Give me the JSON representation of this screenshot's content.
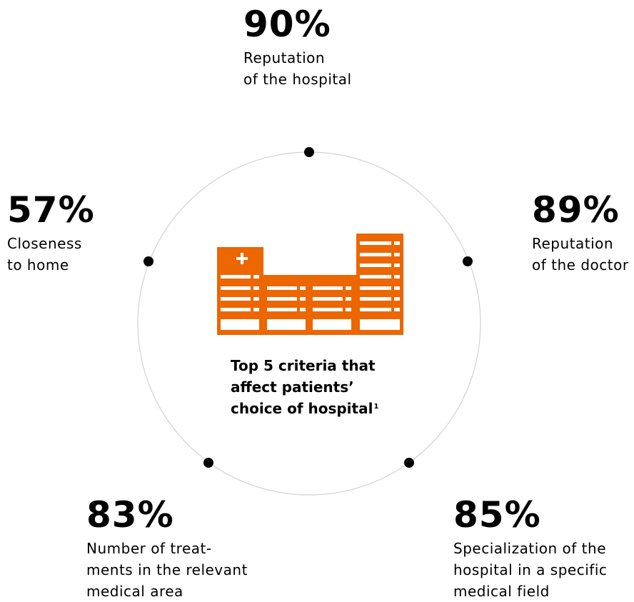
{
  "center": {
    "title_lines": [
      "Top 5 criteria that",
      "affect patients’",
      "choice of hospital"
    ],
    "footnote_marker": "1",
    "icon": "hospital-building-icon",
    "accent_color": "#ec6602"
  },
  "criteria": {
    "top": {
      "percent": "90%",
      "lines": [
        "Reputation",
        "of the hospital"
      ]
    },
    "right": {
      "percent": "89%",
      "lines": [
        "Reputation",
        "of the doctor"
      ]
    },
    "left": {
      "percent": "57%",
      "lines": [
        "Closeness",
        "to home"
      ]
    },
    "bottom_left": {
      "percent": "83%",
      "lines": [
        "Number of treat-",
        "ments in the relevant",
        "medical area"
      ]
    },
    "bottom_right": {
      "percent": "85%",
      "lines": [
        "Specialization of the",
        "hospital in a specific",
        "medical field"
      ]
    }
  }
}
